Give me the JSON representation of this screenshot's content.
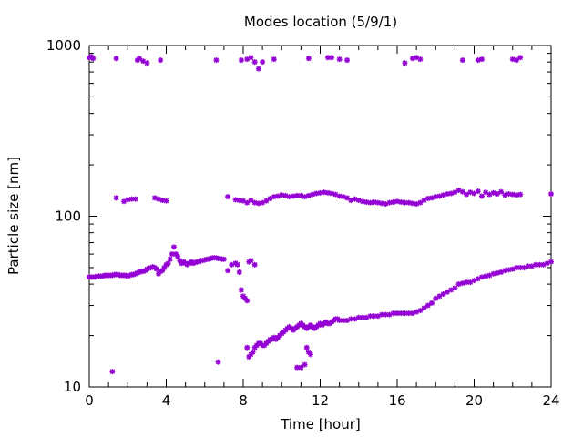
{
  "chart_data": {
    "type": "scatter",
    "title": "Modes location (5/9/1)",
    "xlabel": "Time [hour]",
    "ylabel": "Particle size [nm]",
    "xlim": [
      0,
      24
    ],
    "ylim": [
      10,
      1000
    ],
    "yscale": "log",
    "xticks": [
      0,
      4,
      8,
      12,
      16,
      20,
      24
    ],
    "yticks": [
      10,
      100,
      1000
    ],
    "grid": false,
    "legend": "none",
    "marker_color": "#9400d3",
    "series": [
      {
        "points": [
          [
            0.0,
            44
          ],
          [
            0.1,
            44
          ],
          [
            0.2,
            44
          ],
          [
            0.3,
            44
          ],
          [
            0.4,
            44.5
          ],
          [
            0.5,
            44.5
          ],
          [
            0.6,
            44.5
          ],
          [
            0.7,
            44.5
          ],
          [
            0.8,
            45
          ],
          [
            0.9,
            45
          ],
          [
            1.0,
            45
          ],
          [
            1.1,
            45
          ],
          [
            1.2,
            45
          ],
          [
            1.3,
            45.5
          ],
          [
            1.4,
            45.5
          ],
          [
            1.5,
            45.5
          ],
          [
            1.6,
            45
          ],
          [
            1.7,
            45
          ],
          [
            1.8,
            45
          ],
          [
            1.9,
            45
          ],
          [
            2.0,
            44.5
          ],
          [
            2.1,
            45
          ],
          [
            2.2,
            45.5
          ],
          [
            2.3,
            45.5
          ],
          [
            2.4,
            46
          ],
          [
            2.5,
            46.5
          ],
          [
            2.6,
            47
          ],
          [
            2.7,
            47.5
          ],
          [
            2.8,
            47.5
          ],
          [
            2.9,
            48
          ],
          [
            3.0,
            49
          ],
          [
            3.1,
            49.5
          ],
          [
            3.2,
            50
          ],
          [
            3.3,
            50.5
          ],
          [
            3.4,
            50
          ],
          [
            3.5,
            49
          ],
          [
            3.6,
            46
          ],
          [
            3.7,
            47.5
          ],
          [
            3.8,
            48
          ],
          [
            3.9,
            50
          ],
          [
            4.0,
            52
          ],
          [
            4.1,
            53
          ],
          [
            4.2,
            56
          ],
          [
            4.3,
            60
          ],
          [
            4.4,
            66
          ],
          [
            4.5,
            60
          ],
          [
            4.6,
            58
          ],
          [
            4.7,
            55
          ],
          [
            4.8,
            53
          ],
          [
            4.9,
            54
          ],
          [
            5.0,
            53
          ],
          [
            5.1,
            52
          ],
          [
            5.2,
            53
          ],
          [
            5.3,
            54
          ],
          [
            5.4,
            53
          ],
          [
            5.5,
            53.5
          ],
          [
            5.6,
            54
          ],
          [
            5.7,
            54
          ],
          [
            5.8,
            55
          ],
          [
            5.9,
            55
          ],
          [
            6.0,
            55.5
          ],
          [
            6.1,
            56
          ],
          [
            6.2,
            56
          ],
          [
            6.3,
            56.5
          ],
          [
            6.4,
            57
          ],
          [
            6.5,
            57
          ],
          [
            6.6,
            57
          ],
          [
            6.7,
            56.5
          ],
          [
            6.8,
            56.5
          ],
          [
            6.9,
            56
          ],
          [
            7.0,
            56
          ],
          [
            7.2,
            48
          ],
          [
            7.4,
            52
          ],
          [
            7.6,
            53
          ],
          [
            7.7,
            52
          ],
          [
            7.8,
            47
          ],
          [
            7.9,
            37
          ],
          [
            8.0,
            34
          ],
          [
            8.1,
            33
          ],
          [
            8.2,
            32
          ],
          [
            8.3,
            54
          ],
          [
            8.4,
            55
          ],
          [
            8.6,
            52
          ]
        ]
      },
      {
        "points": [
          [
            8.2,
            17
          ],
          [
            8.3,
            15
          ],
          [
            8.4,
            15.5
          ],
          [
            8.5,
            16
          ],
          [
            8.6,
            17
          ],
          [
            8.7,
            17.5
          ],
          [
            8.8,
            18
          ],
          [
            8.9,
            18
          ],
          [
            9.0,
            17.5
          ],
          [
            9.1,
            17.5
          ],
          [
            9.2,
            18
          ],
          [
            9.3,
            18.5
          ],
          [
            9.4,
            19
          ],
          [
            9.5,
            19
          ],
          [
            9.6,
            19.5
          ],
          [
            9.7,
            19
          ],
          [
            9.8,
            19.5
          ],
          [
            9.9,
            20
          ],
          [
            10.0,
            20.5
          ],
          [
            10.1,
            21
          ],
          [
            10.2,
            21.5
          ],
          [
            10.3,
            22
          ],
          [
            10.4,
            22.5
          ],
          [
            10.5,
            22
          ],
          [
            10.6,
            21.5
          ],
          [
            10.7,
            22
          ],
          [
            10.8,
            22.5
          ],
          [
            10.9,
            23
          ],
          [
            11.0,
            23.5
          ],
          [
            11.1,
            23
          ],
          [
            11.2,
            22.5
          ],
          [
            11.3,
            22
          ],
          [
            11.4,
            22.5
          ],
          [
            11.5,
            23
          ],
          [
            11.6,
            22.5
          ],
          [
            11.7,
            22
          ],
          [
            11.8,
            22.5
          ],
          [
            11.9,
            23
          ],
          [
            12.0,
            23.5
          ],
          [
            12.1,
            23
          ],
          [
            12.2,
            23.5
          ],
          [
            12.3,
            24
          ],
          [
            12.4,
            23.5
          ],
          [
            12.5,
            23.5
          ],
          [
            12.6,
            24
          ],
          [
            12.7,
            24.5
          ],
          [
            12.8,
            25
          ],
          [
            12.9,
            25
          ],
          [
            13.0,
            24.5
          ],
          [
            13.2,
            24.5
          ],
          [
            13.4,
            24.5
          ],
          [
            13.6,
            25
          ],
          [
            13.8,
            25
          ],
          [
            14.0,
            25.5
          ],
          [
            14.2,
            25.5
          ],
          [
            14.4,
            25.5
          ],
          [
            14.6,
            26
          ],
          [
            14.8,
            26
          ],
          [
            15.0,
            26
          ],
          [
            15.2,
            26.5
          ],
          [
            15.4,
            26.5
          ],
          [
            15.6,
            26.5
          ],
          [
            15.8,
            27
          ],
          [
            16.0,
            27
          ],
          [
            16.2,
            27
          ],
          [
            16.4,
            27
          ],
          [
            16.6,
            27
          ],
          [
            16.8,
            27
          ],
          [
            17.0,
            27.5
          ],
          [
            17.2,
            28
          ],
          [
            17.4,
            29
          ],
          [
            17.6,
            30
          ],
          [
            17.8,
            31
          ],
          [
            18.0,
            33
          ],
          [
            18.2,
            34
          ],
          [
            18.4,
            35
          ],
          [
            18.6,
            36
          ],
          [
            18.8,
            37
          ],
          [
            19.0,
            38
          ],
          [
            19.2,
            40
          ],
          [
            19.4,
            40.5
          ],
          [
            19.6,
            41
          ],
          [
            19.8,
            41
          ],
          [
            20.0,
            42
          ],
          [
            20.2,
            43
          ],
          [
            20.4,
            44
          ],
          [
            20.6,
            44.5
          ],
          [
            20.8,
            45
          ],
          [
            21.0,
            46
          ],
          [
            21.2,
            46.5
          ],
          [
            21.4,
            47
          ],
          [
            21.6,
            48
          ],
          [
            21.8,
            48.5
          ],
          [
            22.0,
            49
          ],
          [
            22.2,
            50
          ],
          [
            22.4,
            50
          ],
          [
            22.6,
            50
          ],
          [
            22.8,
            51
          ],
          [
            23.0,
            51
          ],
          [
            23.2,
            52
          ],
          [
            23.4,
            52
          ],
          [
            23.6,
            52
          ],
          [
            23.8,
            53
          ],
          [
            24.0,
            54
          ]
        ]
      },
      {
        "points": [
          [
            1.2,
            12.3
          ],
          [
            6.7,
            14
          ],
          [
            10.8,
            13
          ],
          [
            11.0,
            13
          ],
          [
            11.2,
            13.5
          ],
          [
            11.3,
            17
          ],
          [
            11.4,
            16
          ],
          [
            11.5,
            15.5
          ]
        ]
      },
      {
        "points": [
          [
            1.4,
            128
          ],
          [
            1.8,
            122
          ],
          [
            2.0,
            125
          ],
          [
            2.2,
            126
          ],
          [
            2.4,
            126
          ],
          [
            3.4,
            128
          ],
          [
            3.6,
            126
          ],
          [
            3.8,
            124
          ],
          [
            4.0,
            123
          ],
          [
            7.2,
            130
          ],
          [
            7.6,
            125
          ],
          [
            7.8,
            124
          ],
          [
            8.0,
            123
          ],
          [
            8.2,
            120
          ],
          [
            8.4,
            124
          ],
          [
            8.6,
            120
          ],
          [
            8.8,
            119
          ],
          [
            9.0,
            120
          ],
          [
            9.2,
            123
          ],
          [
            9.4,
            127
          ],
          [
            9.6,
            130
          ],
          [
            9.8,
            131
          ],
          [
            10.0,
            133
          ],
          [
            10.2,
            132
          ],
          [
            10.4,
            130
          ],
          [
            10.6,
            131
          ],
          [
            10.8,
            132
          ],
          [
            11.0,
            132
          ],
          [
            11.2,
            130
          ],
          [
            11.4,
            132
          ],
          [
            11.6,
            134
          ],
          [
            11.8,
            136
          ],
          [
            12.0,
            137
          ],
          [
            12.2,
            138
          ],
          [
            12.4,
            137
          ],
          [
            12.6,
            136
          ],
          [
            12.8,
            134
          ],
          [
            13.0,
            131
          ],
          [
            13.2,
            130
          ],
          [
            13.4,
            128
          ],
          [
            13.6,
            124
          ],
          [
            13.8,
            126
          ],
          [
            14.0,
            124
          ],
          [
            14.2,
            122
          ],
          [
            14.4,
            121
          ],
          [
            14.6,
            120
          ],
          [
            14.8,
            121
          ],
          [
            15.0,
            120
          ],
          [
            15.2,
            119
          ],
          [
            15.4,
            118
          ],
          [
            15.6,
            120
          ],
          [
            15.8,
            121
          ],
          [
            16.0,
            122
          ],
          [
            16.2,
            121
          ],
          [
            16.4,
            120
          ],
          [
            16.6,
            120
          ],
          [
            16.8,
            119
          ],
          [
            17.0,
            118
          ],
          [
            17.2,
            120
          ],
          [
            17.4,
            124
          ],
          [
            17.6,
            127
          ],
          [
            17.8,
            128
          ],
          [
            18.0,
            130
          ],
          [
            18.2,
            131
          ],
          [
            18.4,
            133
          ],
          [
            18.6,
            135
          ],
          [
            18.8,
            136
          ],
          [
            19.0,
            138
          ],
          [
            19.2,
            142
          ],
          [
            19.4,
            139
          ],
          [
            19.6,
            134
          ],
          [
            19.8,
            138
          ],
          [
            20.0,
            136
          ],
          [
            20.2,
            140
          ],
          [
            20.4,
            131
          ],
          [
            20.6,
            138
          ],
          [
            20.8,
            134
          ],
          [
            21.0,
            137
          ],
          [
            21.2,
            135
          ],
          [
            21.4,
            139
          ],
          [
            21.6,
            133
          ],
          [
            21.8,
            135
          ],
          [
            22.0,
            134
          ],
          [
            22.2,
            133
          ],
          [
            22.4,
            134
          ],
          [
            24.0,
            135
          ]
        ]
      },
      {
        "points": [
          [
            0.0,
            850
          ],
          [
            0.1,
            860
          ],
          [
            0.2,
            840
          ],
          [
            1.4,
            840
          ],
          [
            2.5,
            820
          ],
          [
            2.6,
            840
          ],
          [
            2.8,
            810
          ],
          [
            3.0,
            790
          ],
          [
            3.7,
            820
          ],
          [
            6.6,
            820
          ],
          [
            7.9,
            820
          ],
          [
            8.2,
            830
          ],
          [
            8.4,
            850
          ],
          [
            8.6,
            800
          ],
          [
            8.8,
            730
          ],
          [
            9.0,
            800
          ],
          [
            9.6,
            830
          ],
          [
            11.4,
            840
          ],
          [
            12.4,
            850
          ],
          [
            12.6,
            850
          ],
          [
            13.0,
            830
          ],
          [
            13.4,
            820
          ],
          [
            16.4,
            790
          ],
          [
            16.8,
            840
          ],
          [
            17.0,
            850
          ],
          [
            17.2,
            830
          ],
          [
            19.4,
            820
          ],
          [
            20.2,
            820
          ],
          [
            20.4,
            830
          ],
          [
            22.0,
            830
          ],
          [
            22.2,
            820
          ],
          [
            22.4,
            850
          ]
        ]
      }
    ]
  }
}
